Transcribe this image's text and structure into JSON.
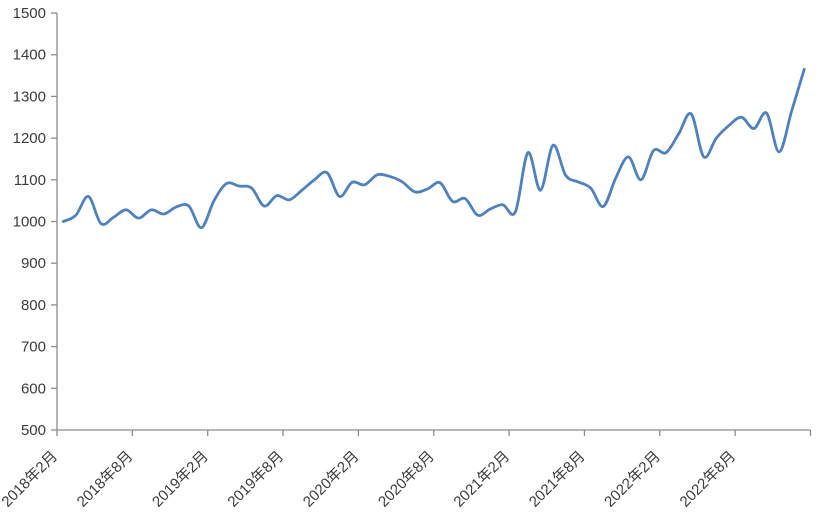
{
  "chart_data": {
    "type": "line",
    "title": "",
    "legend": "none",
    "grid": false,
    "smooth": true,
    "line_color": "#4F81BD",
    "axis_color": "#8C8C8C",
    "text_color": "#3B3B3B",
    "ylim": [
      500,
      1500
    ],
    "y_ticks": [
      500,
      600,
      700,
      800,
      900,
      1000,
      1100,
      1200,
      1300,
      1400,
      1500
    ],
    "x_tick_interval": 6,
    "x_tick_labels": [
      "2018年2月",
      "2018年8月",
      "2019年2月",
      "2019年8月",
      "2020年2月",
      "2020年8月",
      "2021年2月",
      "2021年8月",
      "2022年2月",
      "2022年8月"
    ],
    "x": [
      "2018年2月",
      "2018年3月",
      "2018年4月",
      "2018年5月",
      "2018年6月",
      "2018年7月",
      "2018年8月",
      "2018年9月",
      "2018年10月",
      "2018年11月",
      "2018年12月",
      "2019年1月",
      "2019年2月",
      "2019年3月",
      "2019年4月",
      "2019年5月",
      "2019年6月",
      "2019年7月",
      "2019年8月",
      "2019年9月",
      "2019年10月",
      "2019年11月",
      "2019年12月",
      "2020年1月",
      "2020年2月",
      "2020年3月",
      "2020年4月",
      "2020年5月",
      "2020年6月",
      "2020年7月",
      "2020年8月",
      "2020年9月",
      "2020年10月",
      "2020年11月",
      "2020年12月",
      "2021年1月",
      "2021年2月",
      "2021年3月",
      "2021年4月",
      "2021年5月",
      "2021年6月",
      "2021年7月",
      "2021年8月",
      "2021年9月",
      "2021年10月",
      "2021年11月",
      "2021年12月",
      "2022年1月",
      "2022年2月",
      "2022年3月",
      "2022年4月",
      "2022年5月",
      "2022年6月",
      "2022年7月",
      "2022年8月",
      "2022年9月",
      "2022年10月",
      "2022年11月",
      "2022年12月",
      "2023年1月"
    ],
    "values": [
      1000,
      1015,
      1060,
      995,
      1010,
      1028,
      1008,
      1028,
      1018,
      1035,
      1037,
      985,
      1050,
      1091,
      1085,
      1080,
      1037,
      1062,
      1052,
      1075,
      1100,
      1117,
      1060,
      1094,
      1088,
      1112,
      1108,
      1095,
      1071,
      1078,
      1093,
      1048,
      1055,
      1015,
      1030,
      1040,
      1023,
      1165,
      1075,
      1183,
      1111,
      1095,
      1080,
      1036,
      1105,
      1155,
      1100,
      1170,
      1165,
      1210,
      1258,
      1155,
      1200,
      1230,
      1250,
      1223,
      1260,
      1167,
      1265,
      1365
    ]
  }
}
